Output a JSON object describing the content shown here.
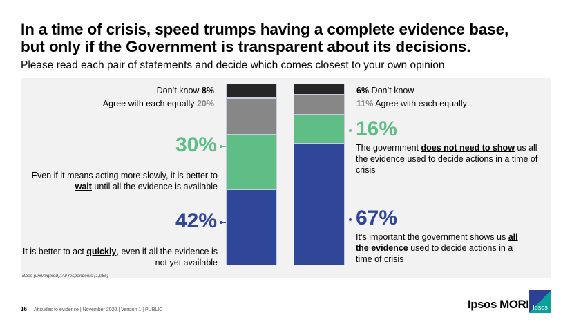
{
  "title_line1": "In a time of crisis, speed trumps having a complete evidence base,",
  "title_line2": "but only if the Government is transparent about its decisions.",
  "subtitle": "Please read each pair of statements and decide which comes closest to your own opinion",
  "chart_data": {
    "type": "bar",
    "stacked": true,
    "ylim": [
      0,
      100
    ],
    "colors": {
      "dont_know": "#262626",
      "agree_equally": "#878787",
      "green": "#5fbe85",
      "blue": "#2f4699"
    },
    "bars": [
      {
        "segments": [
          {
            "key": "blue",
            "value": 42,
            "label": "42%",
            "parts": [
              {
                "t": "It is better to act "
              },
              {
                "t": "quickly",
                "u": true
              },
              {
                "t": ", even if all the evidence is not yet available"
              }
            ]
          },
          {
            "key": "green",
            "value": 30,
            "label": "30%",
            "parts": [
              {
                "t": "Even if it means acting more slowly, it is better to "
              },
              {
                "t": "wait",
                "u": true
              },
              {
                "t": " until all the evidence is available"
              }
            ]
          },
          {
            "key": "agree_equally",
            "value": 20,
            "label": "20%",
            "text": "Agree with each equally"
          },
          {
            "key": "dont_know",
            "value": 8,
            "label": "8%",
            "text": "Don’t know"
          }
        ]
      },
      {
        "segments": [
          {
            "key": "blue",
            "value": 67,
            "label": "67%",
            "parts": [
              {
                "t": "It’s important the government shows us "
              },
              {
                "t": "all the evidence ",
                "u": true
              },
              {
                "t": "used to decide actions in a time of crisis"
              }
            ]
          },
          {
            "key": "green",
            "value": 16,
            "label": "16%",
            "parts": [
              {
                "t": "The government "
              },
              {
                "t": "does not need to show",
                "u": true
              },
              {
                "t": " us all the evidence used to decide actions in a time of crisis"
              }
            ]
          },
          {
            "key": "agree_equally",
            "value": 11,
            "label": "11%",
            "text": "Agree with each equally"
          },
          {
            "key": "dont_know",
            "value": 6,
            "label": "6%",
            "text": "Don’t know"
          }
        ]
      }
    ]
  },
  "base_note": "Base (unweighted): All respondents (1,085)",
  "footer": {
    "page": "16",
    "text": "Attitudes to evidence | November 2020 | Version 1 | PUBLIC"
  },
  "brand": {
    "name": "Ipsos MORI",
    "logo_text": "Ipsos"
  }
}
